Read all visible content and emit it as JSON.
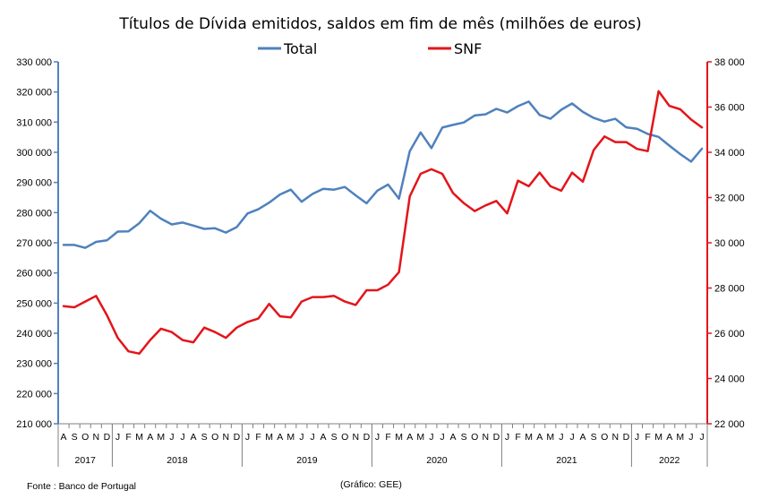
{
  "chart_data": {
    "type": "line",
    "title": "Títulos de Dívida emitidos, saldos em fim de mês  (milhões de euros)",
    "legend": {
      "placement": "top-center",
      "entries": [
        {
          "name": "Total",
          "color": "#4f81bd"
        },
        {
          "name": "SNF",
          "color": "#e3151a"
        }
      ]
    },
    "x": [
      "A",
      "S",
      "O",
      "N",
      "D",
      "J",
      "F",
      "M",
      "A",
      "M",
      "J",
      "J",
      "A",
      "S",
      "O",
      "N",
      "D",
      "J",
      "F",
      "M",
      "A",
      "M",
      "J",
      "J",
      "A",
      "S",
      "O",
      "N",
      "D",
      "J",
      "F",
      "M",
      "A",
      "M",
      "J",
      "J",
      "A",
      "S",
      "O",
      "N",
      "D",
      "J",
      "F",
      "M",
      "A",
      "M",
      "J",
      "J",
      "A",
      "S",
      "O",
      "N",
      "D",
      "J",
      "F",
      "M",
      "A",
      "M",
      "J",
      "J"
    ],
    "year_groups": [
      {
        "label": "2017",
        "start": 0,
        "count": 5
      },
      {
        "label": "2018",
        "start": 5,
        "count": 12
      },
      {
        "label": "2019",
        "start": 17,
        "count": 12
      },
      {
        "label": "2020",
        "start": 29,
        "count": 12
      },
      {
        "label": "2021",
        "start": 41,
        "count": 12
      },
      {
        "label": "2022",
        "start": 53,
        "count": 7
      }
    ],
    "y_left": {
      "range": [
        210000,
        330000
      ],
      "ticks": [
        210000,
        220000,
        230000,
        240000,
        250000,
        260000,
        270000,
        280000,
        290000,
        300000,
        310000,
        320000,
        330000
      ],
      "tick_labels": [
        "210 000",
        "220 000",
        "230 000",
        "240 000",
        "250 000",
        "260 000",
        "270 000",
        "280 000",
        "290 000",
        "300 000",
        "310 000",
        "320 000",
        "330 000"
      ]
    },
    "y_right": {
      "range": [
        22000,
        38000
      ],
      "ticks": [
        22000,
        24000,
        26000,
        28000,
        30000,
        32000,
        34000,
        36000,
        38000
      ],
      "tick_labels": [
        "22 000",
        "24 000",
        "26 000",
        "28 000",
        "30 000",
        "32 000",
        "34 000",
        "36 000",
        "38 000"
      ]
    },
    "grid": false,
    "series": [
      {
        "name": "Total",
        "axis": "left",
        "color": "#4f81bd",
        "values": [
          269300,
          269300,
          268300,
          270300,
          270800,
          273700,
          273800,
          276500,
          280600,
          278000,
          276100,
          276700,
          275700,
          274600,
          274800,
          273400,
          275200,
          279700,
          281100,
          283300,
          286000,
          287600,
          283600,
          286200,
          287900,
          287600,
          288500,
          285700,
          283100,
          287300,
          289300,
          284600,
          300400,
          306600,
          301400,
          308200,
          309100,
          309900,
          312200,
          312600,
          314400,
          313200,
          315300,
          316800,
          312400,
          311100,
          314100,
          316200,
          313400,
          311400,
          310200,
          311100,
          308300,
          307800,
          306100,
          305100,
          302200,
          299400,
          296900,
          301200
        ]
      },
      {
        "name": "SNF",
        "axis": "right",
        "color": "#e3151a",
        "values": [
          27200,
          27150,
          27400,
          27650,
          26800,
          25800,
          25200,
          25100,
          25700,
          26200,
          26050,
          25700,
          25600,
          26250,
          26050,
          25800,
          26250,
          26500,
          26650,
          27300,
          26750,
          26700,
          27400,
          27600,
          27600,
          27650,
          27400,
          27250,
          27900,
          27900,
          28150,
          28700,
          32050,
          33050,
          33250,
          33050,
          32200,
          31750,
          31400,
          31650,
          31850,
          31300,
          32750,
          32500,
          33100,
          32500,
          32300,
          33100,
          32700,
          34100,
          34700,
          34450,
          34450,
          34150,
          34050,
          36700,
          36050,
          35900,
          35450,
          35100
        ]
      }
    ]
  },
  "source_note": "Fonte : Banco de Portugal",
  "credit_note": "(Gráfico: GEE)"
}
